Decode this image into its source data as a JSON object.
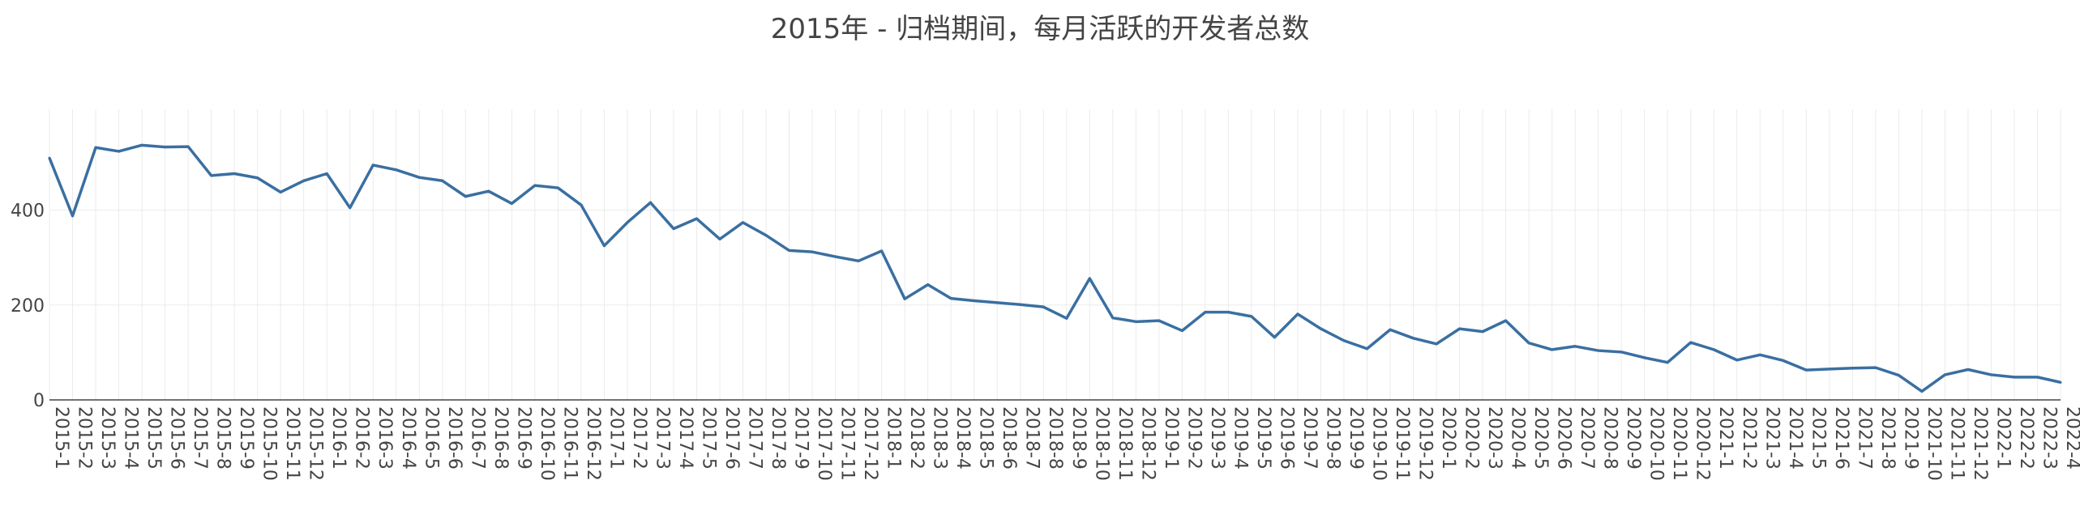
{
  "chart_data": {
    "type": "line",
    "title": "2015年 - 归档期间，每月活跃的开发者总数",
    "xlabel": "",
    "ylabel": "",
    "x": [
      "2015-1",
      "2015-2",
      "2015-3",
      "2015-4",
      "2015-5",
      "2015-6",
      "2015-7",
      "2015-8",
      "2015-9",
      "2015-10",
      "2015-11",
      "2015-12",
      "2016-1",
      "2016-2",
      "2016-3",
      "2016-4",
      "2016-5",
      "2016-6",
      "2016-7",
      "2016-8",
      "2016-9",
      "2016-10",
      "2016-11",
      "2016-12",
      "2017-1",
      "2017-2",
      "2017-3",
      "2017-4",
      "2017-5",
      "2017-6",
      "2017-7",
      "2017-8",
      "2017-9",
      "2017-10",
      "2017-11",
      "2017-12",
      "2018-1",
      "2018-2",
      "2018-3",
      "2018-4",
      "2018-5",
      "2018-6",
      "2018-7",
      "2018-8",
      "2018-9",
      "2018-10",
      "2018-11",
      "2018-12",
      "2019-1",
      "2019-2",
      "2019-3",
      "2019-4",
      "2019-5",
      "2019-6",
      "2019-7",
      "2019-8",
      "2019-9",
      "2019-10",
      "2019-11",
      "2019-12",
      "2020-1",
      "2020-2",
      "2020-3",
      "2020-4",
      "2020-5",
      "2020-6",
      "2020-7",
      "2020-8",
      "2020-9",
      "2020-10",
      "2020-11",
      "2020-12",
      "2021-1",
      "2021-2",
      "2021-3",
      "2021-4",
      "2021-5",
      "2021-6",
      "2021-7",
      "2021-8",
      "2021-9",
      "2021-10",
      "2021-11",
      "2021-12",
      "2022-1",
      "2022-2",
      "2022-3",
      "2022-4"
    ],
    "x_tick_labels": [
      "2015-1",
      "2015-2",
      "2015-3",
      "2015-4",
      "2015-5",
      "2015-6",
      "2015-7",
      "2015-8",
      "2015-9",
      "2015-10",
      "2015-11",
      "2015-12",
      "2016-1",
      "2016-2",
      "2016-3",
      "2016-4",
      "2016-5",
      "2016-6",
      "2016-7",
      "2016-8",
      "2016-9",
      "2016-10",
      "2016-11",
      "2016-12",
      "2017-1",
      "2017-2",
      "2017-3",
      "2017-4",
      "2017-5",
      "2017-6",
      "2017-7",
      "2017-8",
      "2017-9",
      "2017-10",
      "2017-11",
      "2017-12",
      "2018-1",
      "2018-2",
      "2018-3",
      "2018-4",
      "2018-5",
      "2018-6",
      "2018-7",
      "2018-8",
      "2018-9",
      "2018-10",
      "2018-11",
      "2018-12",
      "2019-1",
      "2019-2",
      "2019-3",
      "2019-4",
      "2019-5",
      "2019-6",
      "2019-7",
      "2019-8",
      "2019-9",
      "2019-10",
      "2019-11",
      "2019-12",
      "2020-1",
      "2020-2",
      "2020-3",
      "2020-4",
      "2020-5",
      "2020-6",
      "2020-7",
      "2020-8",
      "2020-9",
      "2020-10",
      "2020-11",
      "2020-12",
      "2021-1",
      "2021-2",
      "2021-3",
      "2021-4",
      "2021-5",
      "2021-6",
      "2021-7",
      "2021-8",
      "2021-9",
      "2021-10",
      "2021-11",
      "2021-12",
      "2022-1",
      "2022-2",
      "2022-3",
      "2022-4"
    ],
    "series": [
      {
        "values": [
          510,
          388,
          532,
          524,
          537,
          533,
          534,
          473,
          477,
          468,
          438,
          462,
          477,
          405,
          495,
          485,
          469,
          462,
          429,
          440,
          414,
          452,
          447,
          411,
          325,
          374,
          416,
          361,
          382,
          339,
          374,
          347,
          315,
          312,
          302,
          293,
          314,
          213,
          243,
          214,
          209,
          205,
          201,
          196,
          172,
          256,
          173,
          165,
          167,
          146,
          185,
          185,
          176,
          132,
          181,
          150,
          125,
          108,
          148,
          130,
          118,
          150,
          144,
          167,
          120,
          106,
          113,
          104,
          101,
          89,
          79,
          121,
          106,
          84,
          95,
          83,
          63,
          65,
          67,
          68,
          52,
          18,
          53,
          64,
          53,
          48,
          48,
          37
        ]
      }
    ],
    "y_ticks": [
      0,
      200,
      400
    ],
    "ylim": [
      0,
      570
    ],
    "grid": true,
    "line_color": "#3a6fa1"
  }
}
